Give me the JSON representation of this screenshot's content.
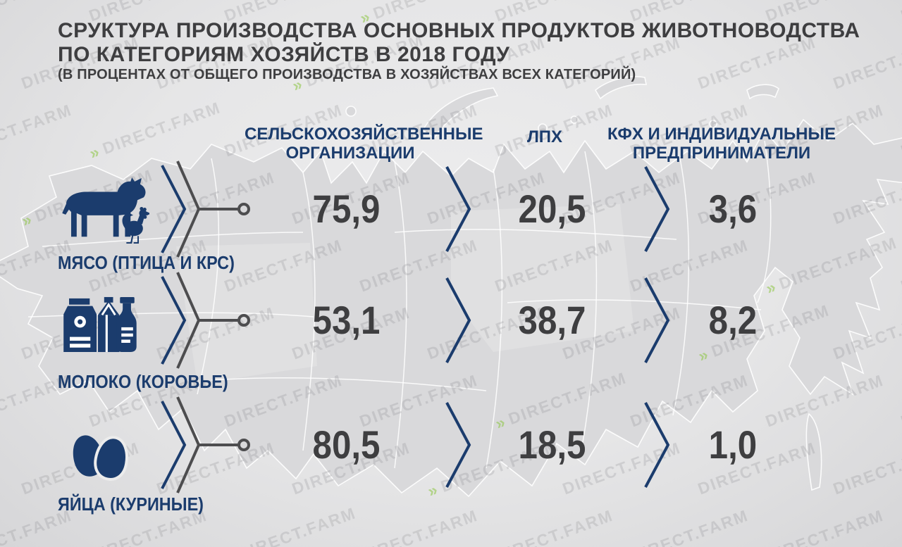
{
  "brand": {
    "watermark_text": "DIRECT.FARM"
  },
  "header": {
    "title_line1": "СРУКТУРА ПРОИЗВОДСТВА ОСНОВНЫХ ПРОДУКТОВ ЖИВОТНОВОДСТВА",
    "title_line2": "ПО КАТЕГОРИЯМ ХОЗЯЙСТВ В 2018 ГОДУ",
    "subtitle": "(В ПРОЦЕНТАХ ОТ ОБЩЕГО ПРОИЗВОДСТВА В ХОЗЯЙСТВАХ ВСЕХ КАТЕГОРИЙ)"
  },
  "table": {
    "columns": [
      {
        "label": "СЕЛЬСКОХОЗЯЙСТВЕННЫЕ ОРГАНИЗАЦИИ"
      },
      {
        "label": "ЛПХ"
      },
      {
        "label": "КФХ И ИНДИВИДУАЛЬНЫЕ ПРЕДПРИНИМАТЕЛИ"
      }
    ],
    "rows": [
      {
        "icon": "cow-and-chicken-icon",
        "label": "МЯСО (ПТИЦА И КРС)",
        "values": [
          "75,9",
          "20,5",
          "3,6"
        ]
      },
      {
        "icon": "milk-products-icon",
        "label": "МОЛОКО (КОРОВЬЕ)",
        "values": [
          "53,1",
          "38,7",
          "8,2"
        ]
      },
      {
        "icon": "eggs-icon",
        "label": "ЯЙЦА (КУРИНЫЕ)",
        "values": [
          "80,5",
          "18,5",
          "1,0"
        ]
      }
    ]
  },
  "colors": {
    "navy": "#1b3c6d",
    "dark_text": "#3e3e40",
    "connector_gray": "#4d4d4f",
    "map_fill": "#d9d9db",
    "watermark_green": "#8bc53f"
  },
  "chart_data": {
    "type": "table",
    "title": "СРУКТУРА ПРОИЗВОДСТВА ОСНОВНЫХ ПРОДУКТОВ ЖИВОТНОВОДСТВА ПО КАТЕГОРИЯМ ХОЗЯЙСТВ В 2018 ГОДУ",
    "subtitle": "(В ПРОЦЕНТАХ ОТ ОБЩЕГО ПРОИЗВОДСТВА В ХОЗЯЙСТВАХ ВСЕХ КАТЕГОРИЙ)",
    "unit": "percent of total production",
    "categories": [
      "МЯСО (ПТИЦА И КРС)",
      "МОЛОКО (КОРОВЬЕ)",
      "ЯЙЦА (КУРИНЫЕ)"
    ],
    "series": [
      {
        "name": "СЕЛЬСКОХОЗЯЙСТВЕННЫЕ ОРГАНИЗАЦИИ",
        "values": [
          75.9,
          53.1,
          80.5
        ]
      },
      {
        "name": "ЛПХ",
        "values": [
          20.5,
          38.7,
          18.5
        ]
      },
      {
        "name": "КФХ И ИНДИВИДУАЛЬНЫЕ ПРЕДПРИНИМАТЕЛИ",
        "values": [
          3.6,
          8.2,
          1.0
        ]
      }
    ],
    "year": "2018"
  }
}
